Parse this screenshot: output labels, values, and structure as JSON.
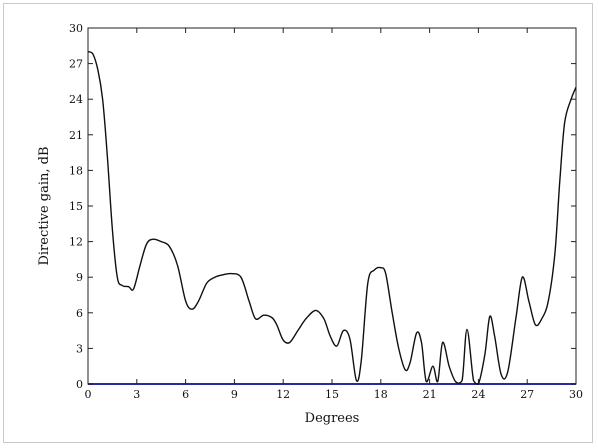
{
  "chart_data": {
    "type": "line",
    "title": "",
    "xlabel": "Degrees",
    "ylabel": "Directive gain, dB",
    "xlim": [
      0,
      30
    ],
    "ylim": [
      0,
      30
    ],
    "xticks": [
      "0",
      "3",
      "6",
      "9",
      "12",
      "15",
      "18",
      "21",
      "24",
      "27",
      "30"
    ],
    "yticks": [
      "0",
      "3",
      "6",
      "9",
      "12",
      "15",
      "18",
      "21",
      "24",
      "27",
      "30"
    ],
    "grid": false,
    "series": [
      {
        "color": "#101010",
        "x": [
          0,
          0.3,
          0.6,
          0.9,
          1.2,
          1.5,
          1.8,
          2.1,
          2.5,
          2.8,
          3.2,
          3.6,
          4.0,
          4.5,
          5.0,
          5.5,
          6.0,
          6.4,
          6.8,
          7.3,
          7.8,
          8.3,
          8.8,
          9.4,
          9.9,
          10.3,
          10.8,
          11.3,
          11.6,
          12.0,
          12.4,
          12.9,
          13.4,
          14.0,
          14.5,
          14.9,
          15.3,
          15.7,
          16.1,
          16.5,
          16.8,
          17.2,
          17.6,
          18.0,
          18.3,
          18.7,
          19.1,
          19.5,
          19.8,
          20.2,
          20.5,
          20.8,
          21.2,
          21.5,
          21.8,
          22.2,
          22.6,
          23.0,
          23.3,
          23.7,
          24.0,
          24.4,
          24.7,
          25.0,
          25.4,
          25.8,
          26.3,
          26.7,
          27.1,
          27.5,
          27.9,
          28.3,
          28.7,
          29.0,
          29.3,
          29.7,
          30.0
        ],
        "y": [
          28.0,
          27.8,
          26.5,
          24.0,
          19.0,
          13.0,
          9.0,
          8.3,
          8.2,
          8.0,
          10.0,
          11.8,
          12.2,
          12.0,
          11.6,
          10.0,
          7.0,
          6.3,
          7.0,
          8.5,
          9.0,
          9.2,
          9.3,
          9.0,
          7.0,
          5.5,
          5.8,
          5.6,
          5.0,
          3.7,
          3.5,
          4.5,
          5.5,
          6.2,
          5.5,
          4.0,
          3.2,
          4.5,
          3.8,
          0.3,
          2.0,
          8.5,
          9.6,
          9.8,
          9.3,
          6.0,
          3.0,
          1.2,
          1.8,
          4.3,
          3.5,
          0.2,
          1.5,
          0.2,
          3.5,
          1.5,
          0.2,
          0.3,
          4.6,
          0.3,
          0.0,
          2.5,
          5.7,
          4.0,
          0.8,
          1.0,
          5.5,
          9.0,
          7.0,
          5.0,
          5.5,
          7.0,
          11.0,
          17.0,
          22.0,
          24.0,
          25.0
        ]
      }
    ]
  }
}
